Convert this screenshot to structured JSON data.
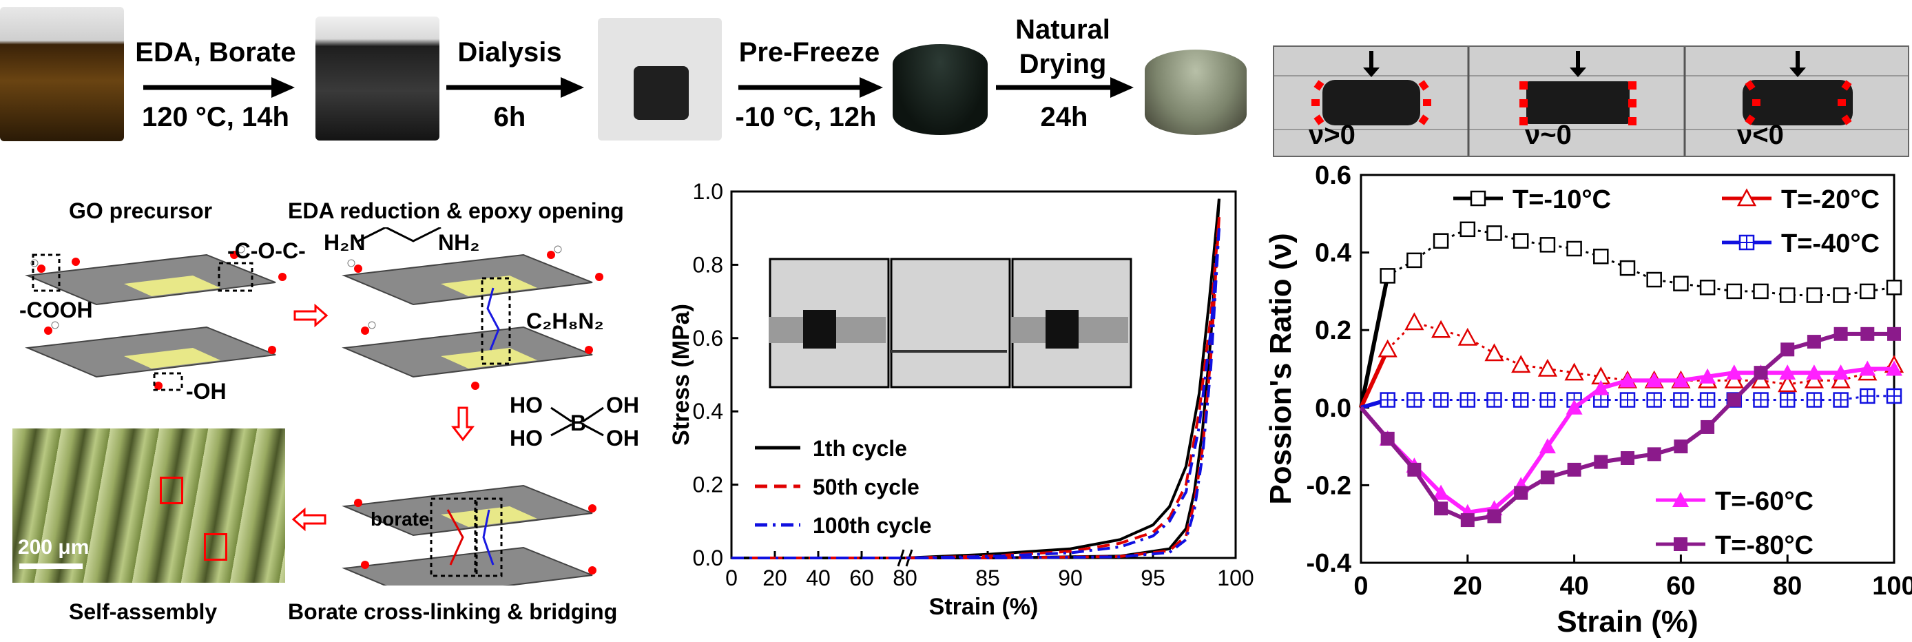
{
  "process": {
    "steps": [
      {
        "top": "EDA, Borate",
        "bottom": "120 °C, 14h"
      },
      {
        "top": "Dialysis",
        "bottom": "6h"
      },
      {
        "top": "Pre-Freeze",
        "bottom": "-10 °C, 12h"
      },
      {
        "top": "Natural Drying",
        "bottom": "24h"
      }
    ],
    "strip_labels": [
      "ν>0",
      "ν~0",
      "ν<0"
    ]
  },
  "schematic": {
    "go_precursor": "GO precursor",
    "eda_reduction": "EDA reduction & epoxy opening",
    "cooh": "-COOH",
    "coc": "-C-O-C-",
    "oh": "-OH",
    "eda_left": "H₂N",
    "eda_right": "NH₂",
    "formula": "C₂H₈N₂",
    "boric_ho1": "HO",
    "boric_b": "B",
    "boric_oh1": "OH",
    "boric_ho2": "HO",
    "boric_oh2": "OH",
    "borate": "borate",
    "scalebar": "200 μm",
    "self_assembly": "Self-assembly",
    "crosslink": "Borate cross-linking & bridging"
  },
  "chart_data": [
    {
      "type": "line",
      "xlabel": "Strain (%)",
      "ylabel": "Stress (MPa)",
      "xticks_left": [
        "0",
        "20",
        "40",
        "60",
        "80"
      ],
      "xticks_right": [
        "85",
        "90",
        "95",
        "100"
      ],
      "yticks": [
        "0.0",
        "0.2",
        "0.4",
        "0.6",
        "0.8",
        "1.0"
      ],
      "x_break": 80,
      "ylim": [
        0,
        1.0
      ],
      "series": [
        {
          "name": "1th cycle",
          "color": "#000000",
          "dash": "solid",
          "loading": [
            [
              0,
              0
            ],
            [
              80,
              0
            ],
            [
              85,
              0.01
            ],
            [
              90,
              0.025
            ],
            [
              93,
              0.05
            ],
            [
              95,
              0.09
            ],
            [
              96,
              0.14
            ],
            [
              97,
              0.25
            ],
            [
              97.8,
              0.45
            ],
            [
              98.4,
              0.7
            ],
            [
              99,
              0.98
            ]
          ],
          "unloading": [
            [
              99,
              0.98
            ],
            [
              98.5,
              0.6
            ],
            [
              98,
              0.35
            ],
            [
              97.5,
              0.18
            ],
            [
              97,
              0.08
            ],
            [
              96,
              0.025
            ],
            [
              93,
              0.005
            ],
            [
              85,
              0
            ],
            [
              80,
              0
            ]
          ]
        },
        {
          "name": "50th cycle",
          "color": "#e00000",
          "dash": "dash",
          "loading": [
            [
              0,
              0
            ],
            [
              80,
              0
            ],
            [
              85,
              0.005
            ],
            [
              90,
              0.018
            ],
            [
              93,
              0.04
            ],
            [
              95,
              0.07
            ],
            [
              96,
              0.11
            ],
            [
              97,
              0.2
            ],
            [
              97.8,
              0.4
            ],
            [
              98.5,
              0.66
            ],
            [
              99,
              0.93
            ]
          ],
          "unloading": [
            [
              99,
              0.93
            ],
            [
              98.5,
              0.55
            ],
            [
              98,
              0.3
            ],
            [
              97.5,
              0.15
            ],
            [
              97,
              0.06
            ],
            [
              96,
              0.02
            ],
            [
              93,
              0.004
            ],
            [
              85,
              0
            ],
            [
              80,
              0
            ]
          ]
        },
        {
          "name": "100th cycle",
          "color": "#1010e0",
          "dash": "dashdot",
          "loading": [
            [
              0,
              0
            ],
            [
              80,
              0
            ],
            [
              85,
              0.004
            ],
            [
              90,
              0.014
            ],
            [
              93,
              0.03
            ],
            [
              95,
              0.06
            ],
            [
              96,
              0.1
            ],
            [
              97,
              0.18
            ],
            [
              97.8,
              0.36
            ],
            [
              98.5,
              0.62
            ],
            [
              99,
              0.9
            ]
          ],
          "unloading": [
            [
              99,
              0.9
            ],
            [
              98.5,
              0.52
            ],
            [
              98,
              0.28
            ],
            [
              97.5,
              0.13
            ],
            [
              97,
              0.05
            ],
            [
              96,
              0.015
            ],
            [
              93,
              0.003
            ],
            [
              85,
              0
            ],
            [
              80,
              0
            ]
          ]
        }
      ]
    },
    {
      "type": "line",
      "xlabel": "Strain (%)",
      "ylabel": "Possion's Ratio (ν)",
      "xlim": [
        0,
        100
      ],
      "ylim": [
        -0.4,
        0.6
      ],
      "xticks": [
        "0",
        "20",
        "40",
        "60",
        "80",
        "100"
      ],
      "yticks": [
        "-0.4",
        "-0.2",
        "0.0",
        "0.2",
        "0.4",
        "0.6"
      ],
      "series": [
        {
          "name": "T=-10°C",
          "color": "#000000",
          "marker": "square-open",
          "x": [
            0,
            5,
            10,
            15,
            20,
            25,
            30,
            35,
            40,
            45,
            50,
            55,
            60,
            65,
            70,
            75,
            80,
            85,
            90,
            95,
            100
          ],
          "y": [
            0,
            0.34,
            0.38,
            0.43,
            0.46,
            0.45,
            0.43,
            0.42,
            0.41,
            0.39,
            0.36,
            0.33,
            0.32,
            0.31,
            0.3,
            0.3,
            0.29,
            0.29,
            0.29,
            0.3,
            0.31
          ]
        },
        {
          "name": "T=-20°C",
          "color": "#e00000",
          "marker": "triangle-open",
          "x": [
            0,
            5,
            10,
            15,
            20,
            25,
            30,
            35,
            40,
            45,
            50,
            55,
            60,
            65,
            70,
            75,
            80,
            85,
            90,
            95,
            100
          ],
          "y": [
            0,
            0.15,
            0.22,
            0.2,
            0.18,
            0.14,
            0.11,
            0.1,
            0.09,
            0.08,
            0.07,
            0.07,
            0.07,
            0.07,
            0.07,
            0.07,
            0.06,
            0.07,
            0.07,
            0.09,
            0.11
          ]
        },
        {
          "name": "T=-40°C",
          "color": "#1010e0",
          "marker": "square-cross",
          "x": [
            0,
            5,
            10,
            15,
            20,
            25,
            30,
            35,
            40,
            45,
            50,
            55,
            60,
            65,
            70,
            75,
            80,
            85,
            90,
            95,
            100
          ],
          "y": [
            0,
            0.02,
            0.02,
            0.02,
            0.02,
            0.02,
            0.02,
            0.02,
            0.02,
            0.02,
            0.02,
            0.02,
            0.02,
            0.02,
            0.02,
            0.02,
            0.02,
            0.02,
            0.02,
            0.03,
            0.03
          ]
        },
        {
          "name": "T=-60°C",
          "color": "#ff20ff",
          "marker": "triangle-filled",
          "x": [
            0,
            5,
            10,
            15,
            20,
            25,
            30,
            35,
            40,
            45,
            50,
            55,
            60,
            65,
            70,
            75,
            80,
            85,
            90,
            95,
            100
          ],
          "y": [
            0,
            -0.08,
            -0.15,
            -0.22,
            -0.27,
            -0.26,
            -0.2,
            -0.1,
            0,
            0.05,
            0.07,
            0.07,
            0.07,
            0.08,
            0.09,
            0.09,
            0.09,
            0.09,
            0.09,
            0.1,
            0.1
          ]
        },
        {
          "name": "T=-80°C",
          "color": "#8b1a8b",
          "marker": "square-filled",
          "x": [
            0,
            5,
            10,
            15,
            20,
            25,
            30,
            35,
            40,
            45,
            50,
            55,
            60,
            65,
            70,
            75,
            80,
            85,
            90,
            95,
            100
          ],
          "y": [
            0,
            -0.08,
            -0.16,
            -0.26,
            -0.29,
            -0.28,
            -0.22,
            -0.18,
            -0.16,
            -0.14,
            -0.13,
            -0.12,
            -0.1,
            -0.05,
            0.02,
            0.09,
            0.15,
            0.17,
            0.19,
            0.19,
            0.19
          ]
        }
      ]
    }
  ]
}
